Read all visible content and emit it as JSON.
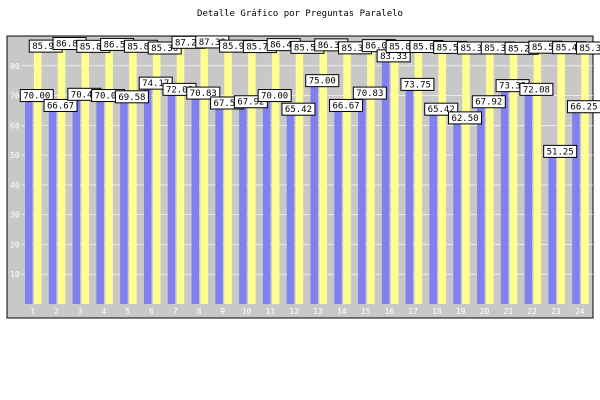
{
  "chart_data": {
    "type": "bar",
    "title": "Detalle Gráfico por Preguntas Paralelo",
    "xlabel": "",
    "ylabel": "",
    "categories": [
      "1",
      "2",
      "3",
      "4",
      "5",
      "6",
      "7",
      "8",
      "9",
      "10",
      "11",
      "12",
      "13",
      "14",
      "15",
      "16",
      "17",
      "18",
      "19",
      "20",
      "21",
      "22",
      "23",
      "24"
    ],
    "series": [
      {
        "values": [
          70.0,
          66.67,
          70.42,
          70.0,
          69.58,
          74.17,
          72.08,
          70.83,
          67.5,
          67.92,
          70.0,
          65.42,
          75.0,
          66.67,
          70.83,
          83.33,
          73.75,
          65.42,
          62.5,
          67.92,
          73.33,
          72.08,
          51.25,
          66.25
        ],
        "color": "#8080f0"
      },
      {
        "values": [
          85.93,
          86.8,
          85.86,
          86.5,
          85.88,
          85.3,
          87.21,
          87.33,
          85.92,
          85.78,
          86.43,
          85.52,
          86.35,
          85.35,
          86.09,
          85.8,
          85.8,
          85.5,
          85.3,
          85.3,
          85.2,
          85.57,
          85.4,
          85.3
        ],
        "color": "#ffff90"
      }
    ],
    "ylim": [
      0,
      90
    ],
    "yticks": [
      10,
      20,
      30,
      40,
      50,
      60,
      70,
      80
    ],
    "grid": true,
    "legend": "none",
    "plot_bg": "#c8c8c8",
    "label_border": "#000000"
  }
}
